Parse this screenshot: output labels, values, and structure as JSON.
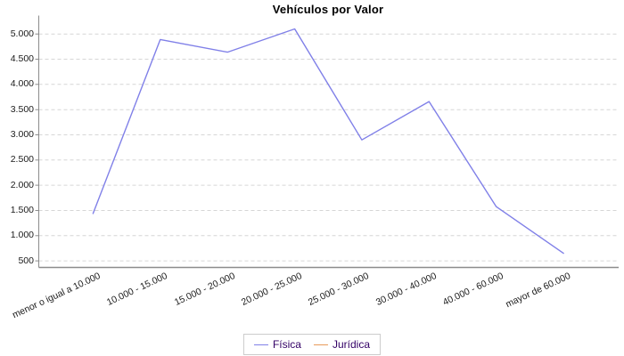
{
  "chart_data": {
    "type": "line",
    "title": "Vehículos por Valor",
    "categories": [
      "menor o igual a 10.000",
      "10.000 - 15.000",
      "15.000 - 20.000",
      "20.000 - 25.000",
      "25.000 - 30.000",
      "30.000 - 40.000",
      "40.000 - 60.000",
      "mayor de 60.000"
    ],
    "series": [
      {
        "name": "Física",
        "color": "#8080e8",
        "values": [
          1440,
          4890,
          4640,
          5100,
          2900,
          3660,
          1575,
          650
        ]
      },
      {
        "name": "Jurídica",
        "color": "#e89a5a",
        "values": []
      }
    ],
    "xlabel": "",
    "ylabel": "",
    "ylim": [
      370,
      5365
    ],
    "yticks": [
      500,
      1000,
      1500,
      2000,
      2500,
      3000,
      3500,
      4000,
      4500,
      5000
    ],
    "ytick_labels": [
      "500",
      "1.000",
      "1.500",
      "2.000",
      "2.500",
      "3.000",
      "3.500",
      "4.000",
      "4.500",
      "5.000"
    ],
    "grid": "horizontal-dashed",
    "legend_position": "bottom-center",
    "colors": {
      "grid": "#d6d6d6",
      "axis": "#8c8c8c",
      "tick_text": "#1a1a1a",
      "legend_text": "#330066",
      "legend_border": "#cccccc",
      "background": "#ffffff"
    }
  }
}
